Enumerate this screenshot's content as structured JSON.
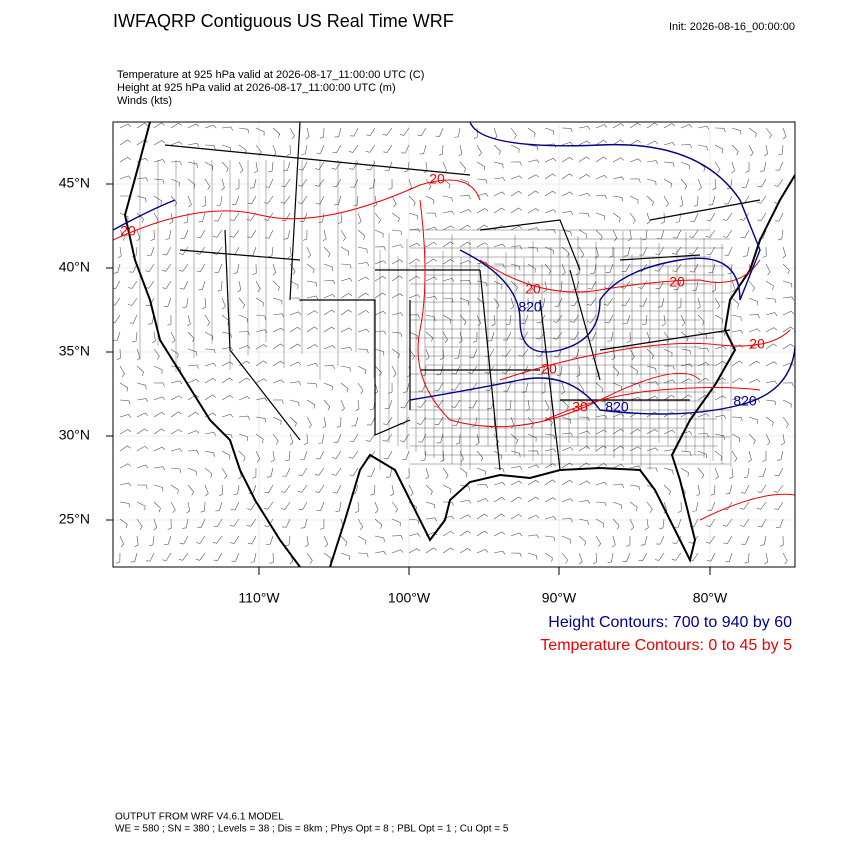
{
  "header": {
    "title": "IWFAQRP Contiguous US Real Time WRF",
    "init": "Init: 2026-08-16_00:00:00",
    "fields": [
      "Temperature at 925 hPa valid at 2026-08-17_11:00:00 UTC   (C)",
      "Height at 925 hPa valid at 2026-08-17_11:00:00 UTC   (m)",
      "Winds   (kts)"
    ]
  },
  "map": {
    "lat_labels": [
      "45°N",
      "40°N",
      "35°N",
      "30°N",
      "25°N"
    ],
    "lon_labels": [
      "110°W",
      "100°W",
      "90°W",
      "80°W"
    ],
    "height_contour_labels": [
      "820",
      "820",
      "820"
    ],
    "temperature_contour_labels": [
      "20",
      "20",
      "20",
      "20",
      "20",
      "20",
      "30"
    ]
  },
  "legend": {
    "height": "Height Contours: 700 to 940 by 60",
    "temperature": "Temperature Contours: 0 to 45 by 5"
  },
  "footer": [
    "OUTPUT FROM WRF V4.6.1 MODEL",
    "WE = 580 ; SN = 380 ; Levels = 38 ; Dis = 8km ; Phys Opt = 8 ; PBL Opt = 1 ; Cu Opt = 5"
  ]
}
